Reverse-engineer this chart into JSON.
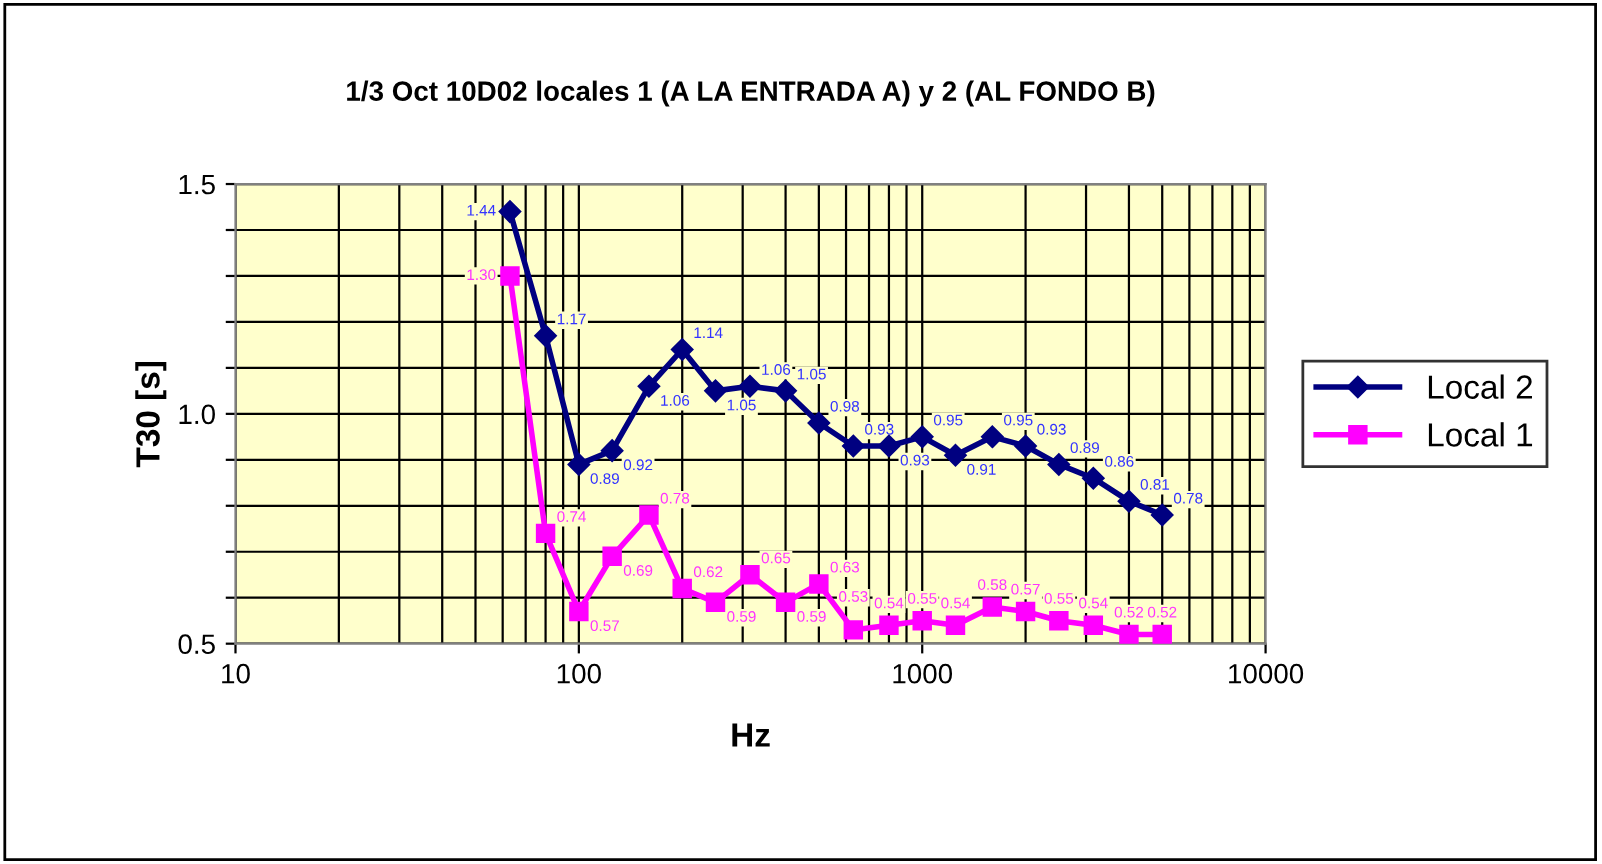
{
  "chart_data": {
    "type": "line",
    "title": "1/3 Oct 10D02 locales 1 (A LA ENTRADA A) y 2 (AL FONDO B)",
    "xlabel": "Hz",
    "ylabel": "T30 [s]",
    "x": [
      63,
      80,
      100,
      125,
      160,
      200,
      250,
      315,
      400,
      500,
      630,
      800,
      1000,
      1250,
      1600,
      2000,
      2500,
      3150,
      4000,
      5000
    ],
    "series": [
      {
        "name": "Local 2",
        "color": "#000080",
        "marker": "diamond",
        "values": [
          1.44,
          1.17,
          0.89,
          0.92,
          1.06,
          1.14,
          1.05,
          1.06,
          1.05,
          0.98,
          0.93,
          0.93,
          0.95,
          0.91,
          0.95,
          0.93,
          0.89,
          0.86,
          0.81,
          0.78
        ],
        "value_labels": [
          "1.44",
          "1.17",
          "0.89",
          "0.92",
          "1.06",
          "1.14",
          "1.05",
          "1.06",
          "1.05",
          "0.98",
          "0.93",
          "0.93",
          "0.95",
          "0.91",
          "0.95",
          "0.93",
          "0.89",
          "0.86",
          "0.81",
          "0.78"
        ]
      },
      {
        "name": "Local 1",
        "color": "#ff00ff",
        "marker": "square",
        "values": [
          1.3,
          0.74,
          0.57,
          0.69,
          0.78,
          0.62,
          0.59,
          0.65,
          0.59,
          0.63,
          0.53,
          0.54,
          0.55,
          0.54,
          0.58,
          0.57,
          0.55,
          0.54,
          0.52,
          0.52
        ],
        "value_labels": [
          "1.30",
          "0.74",
          "0.57",
          "0.69",
          "0.78",
          "0.62",
          "0.59",
          "0.65",
          "0.59",
          "0.63",
          "0.53",
          "0.54",
          "0.55",
          "0.54",
          "0.58",
          "0.57",
          "0.55",
          "0.54",
          "0.52",
          "0.52"
        ]
      }
    ],
    "log": "x",
    "xlim": [
      10,
      10000
    ],
    "xticks": [
      10,
      100,
      1000,
      10000
    ],
    "ylim": [
      0.5,
      1.5
    ],
    "yticks": [
      0.5,
      {
        "value": 0.6,
        "label": null
      },
      {
        "value": 0.7,
        "label": null
      },
      {
        "value": 0.8,
        "label": null
      },
      {
        "value": 0.9,
        "label": null
      },
      {
        "value": 1.0,
        "label": "1.0"
      },
      {
        "value": 1.1,
        "label": null
      },
      {
        "value": 1.2,
        "label": null
      },
      {
        "value": 1.3,
        "label": null
      },
      {
        "value": 1.4,
        "label": null
      },
      1.5
    ],
    "grid": true,
    "legend": "right"
  }
}
